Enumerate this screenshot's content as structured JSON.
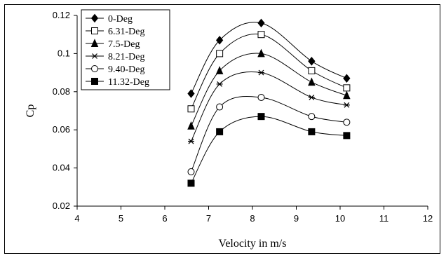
{
  "chart_data": {
    "type": "line",
    "title": "",
    "xlabel": "Velocity in m/s",
    "ylabel": "Cp",
    "xlim": [
      4,
      12
    ],
    "ylim": [
      0.02,
      0.12
    ],
    "x_ticks": [
      "4",
      "5",
      "6",
      "7",
      "8",
      "9",
      "10",
      "11",
      "12"
    ],
    "y_ticks": [
      "0.02",
      "0.04",
      "0.06",
      "0.08",
      "0.1",
      "0.12"
    ],
    "grid": false,
    "legend_position": "top-left",
    "x": [
      6.6,
      7.25,
      8.2,
      9.35,
      10.15
    ],
    "series": [
      {
        "name": "0-Deg",
        "marker": "filled-diamond",
        "values": [
          0.079,
          0.107,
          0.116,
          0.096,
          0.087
        ]
      },
      {
        "name": "6.31-Deg",
        "marker": "open-square",
        "values": [
          0.071,
          0.1,
          0.11,
          0.091,
          0.082
        ]
      },
      {
        "name": "7.5-Deg",
        "marker": "filled-triangle",
        "values": [
          0.062,
          0.091,
          0.1,
          0.085,
          0.078
        ]
      },
      {
        "name": "8.21-Deg",
        "marker": "star",
        "values": [
          0.054,
          0.084,
          0.09,
          0.077,
          0.073
        ]
      },
      {
        "name": "9.40-Deg",
        "marker": "open-circle",
        "values": [
          0.038,
          0.072,
          0.077,
          0.067,
          0.064
        ]
      },
      {
        "name": "11.32-Deg",
        "marker": "filled-square",
        "values": [
          0.032,
          0.059,
          0.067,
          0.059,
          0.057
        ]
      }
    ]
  }
}
